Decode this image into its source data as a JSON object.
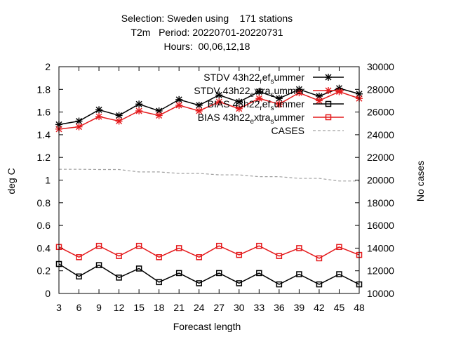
{
  "chart_data": {
    "type": "line",
    "title": {
      "line1": "Selection: Sweden using    171 stations",
      "line2": "T2m   Period: 20220701-20220731",
      "line3": "Hours:  00,06,12,18"
    },
    "xlabel": "Forecast length",
    "ylabel": "deg C",
    "y2label": "No cases",
    "xlim": [
      3,
      48
    ],
    "ylim": [
      0,
      2
    ],
    "y2lim": [
      10000,
      30000
    ],
    "x": [
      3,
      6,
      9,
      12,
      15,
      18,
      21,
      24,
      27,
      30,
      33,
      36,
      39,
      42,
      45,
      48
    ],
    "x_ticks": [
      "3",
      "6",
      "9",
      "12",
      "15",
      "18",
      "21",
      "24",
      "27",
      "30",
      "33",
      "36",
      "39",
      "42",
      "45",
      "48"
    ],
    "y_ticks": [
      "0",
      "0.2",
      "0.4",
      "0.6",
      "0.8",
      "1",
      "1.2",
      "1.4",
      "1.6",
      "1.8",
      "2"
    ],
    "y2_ticks": [
      "10000",
      "12000",
      "14000",
      "16000",
      "18000",
      "20000",
      "22000",
      "24000",
      "26000",
      "28000",
      "30000"
    ],
    "legend": {
      "placement": "top-right",
      "entries": [
        {
          "series": 0,
          "main": "STDV 43h22",
          "parts": [
            [
              "r",
              "sub"
            ],
            [
              "ef",
              "base"
            ],
            [
              "s",
              "sub"
            ],
            [
              "ummer",
              "base"
            ]
          ]
        },
        {
          "series": 1,
          "main": "STDV 43h22",
          "parts": [
            [
              "e",
              "sub"
            ],
            [
              "xtra",
              "base"
            ],
            [
              "s",
              "sub"
            ],
            [
              "ummer",
              "base"
            ]
          ]
        },
        {
          "series": 2,
          "main": "BIAS 43h22",
          "parts": [
            [
              "r",
              "sub"
            ],
            [
              "ef",
              "base"
            ],
            [
              "s",
              "sub"
            ],
            [
              "ummer",
              "base"
            ]
          ]
        },
        {
          "series": 3,
          "main": "BIAS 43h22",
          "parts": [
            [
              "e",
              "sub"
            ],
            [
              "xtra",
              "base"
            ],
            [
              "s",
              "sub"
            ],
            [
              "ummer",
              "base"
            ]
          ]
        },
        {
          "series": 4,
          "main": "CASES",
          "parts": []
        }
      ]
    },
    "series": [
      {
        "name": "STDV 43h22 ref summer",
        "axis": "y",
        "color": "#000000",
        "marker": "star",
        "dash": "",
        "values": [
          1.49,
          1.52,
          1.62,
          1.57,
          1.67,
          1.61,
          1.71,
          1.66,
          1.75,
          1.69,
          1.78,
          1.72,
          1.8,
          1.74,
          1.81,
          1.76
        ]
      },
      {
        "name": "STDV 43h22 extra summer",
        "axis": "y",
        "color": "#e41a1c",
        "marker": "star",
        "dash": "",
        "values": [
          1.45,
          1.47,
          1.56,
          1.52,
          1.61,
          1.57,
          1.66,
          1.61,
          1.69,
          1.63,
          1.72,
          1.67,
          1.77,
          1.7,
          1.78,
          1.72
        ]
      },
      {
        "name": "BIAS 43h22 ref summer",
        "axis": "y",
        "color": "#000000",
        "marker": "square",
        "dash": "",
        "values": [
          0.26,
          0.15,
          0.25,
          0.14,
          0.22,
          0.1,
          0.18,
          0.09,
          0.18,
          0.09,
          0.18,
          0.08,
          0.17,
          0.08,
          0.17,
          0.08
        ]
      },
      {
        "name": "BIAS 43h22 extra summer",
        "axis": "y",
        "color": "#e41a1c",
        "marker": "square",
        "dash": "",
        "values": [
          0.41,
          0.32,
          0.42,
          0.33,
          0.42,
          0.32,
          0.4,
          0.32,
          0.42,
          0.34,
          0.42,
          0.33,
          0.4,
          0.31,
          0.41,
          0.34
        ]
      },
      {
        "name": "CASES",
        "axis": "y2",
        "color": "#a0a0a0",
        "marker": "none",
        "dash": "4,3",
        "values": [
          20950,
          20950,
          20930,
          20930,
          20720,
          20720,
          20590,
          20590,
          20460,
          20460,
          20300,
          20300,
          20150,
          20150,
          19920,
          19920
        ]
      }
    ]
  }
}
